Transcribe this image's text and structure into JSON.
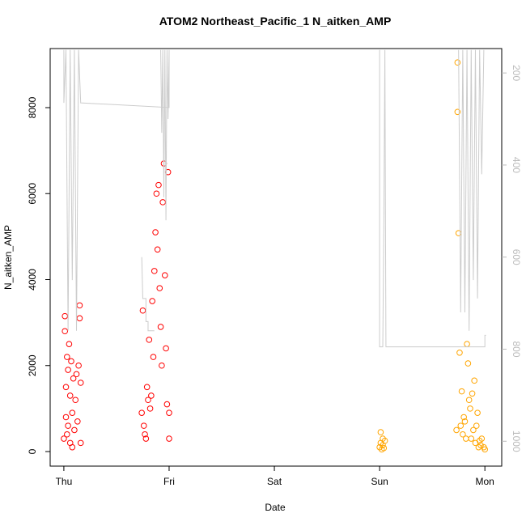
{
  "chart_data": {
    "type": "scatter",
    "title": "ATOM2 Northeast_Pacific_1 N_aitken_AMP",
    "x_label": "Date",
    "y_label": "N_aitken_AMP",
    "xlim": [
      -0.13,
      4.16
    ],
    "ylim": [
      -339,
      9374
    ],
    "y2lim": [
      1054,
      147
    ],
    "xticks": [
      {
        "value": 0,
        "label": "Thu"
      },
      {
        "value": 1,
        "label": "Fri"
      },
      {
        "value": 2,
        "label": "Sat"
      },
      {
        "value": 3,
        "label": "Sun"
      },
      {
        "value": 4,
        "label": "Mon"
      }
    ],
    "yticks": [
      0,
      2000,
      4000,
      6000,
      8000
    ],
    "y2ticks": [
      200,
      400,
      600,
      800,
      1000
    ],
    "series": [
      {
        "color": "#ff0000",
        "kind": "points",
        "x": [
          0.0,
          0.01,
          0.01,
          0.02,
          0.02,
          0.03,
          0.03,
          0.04,
          0.04,
          0.05,
          0.06,
          0.06,
          0.07,
          0.08,
          0.08,
          0.09,
          0.1,
          0.11,
          0.12,
          0.13,
          0.14,
          0.15,
          0.15,
          0.16,
          0.16,
          0.74,
          0.75,
          0.76,
          0.77,
          0.78,
          0.79,
          0.8,
          0.81,
          0.82,
          0.83,
          0.84,
          0.85,
          0.86,
          0.87,
          0.88,
          0.89,
          0.9,
          0.91,
          0.92,
          0.93,
          0.94,
          0.95,
          0.96,
          0.97,
          0.98,
          0.99,
          1.0,
          1.0
        ],
        "values": [
          300,
          2800,
          3150,
          1500,
          800,
          2200,
          400,
          1900,
          600,
          2500,
          1300,
          200,
          2100,
          900,
          100,
          1700,
          500,
          1200,
          1800,
          700,
          2000,
          3400,
          3100,
          1600,
          200,
          900,
          3280,
          600,
          400,
          300,
          1500,
          1200,
          2600,
          1000,
          1300,
          3500,
          2200,
          4200,
          5100,
          6000,
          4700,
          6200,
          3800,
          2900,
          2000,
          5800,
          6700,
          4100,
          2400,
          1100,
          6500,
          900,
          300
        ]
      },
      {
        "color": "#ffa500",
        "kind": "points",
        "x": [
          3.0,
          3.01,
          3.01,
          3.02,
          3.03,
          3.03,
          3.04,
          3.05,
          3.73,
          3.74,
          3.74,
          3.75,
          3.76,
          3.77,
          3.78,
          3.79,
          3.8,
          3.81,
          3.82,
          3.83,
          3.84,
          3.85,
          3.86,
          3.87,
          3.88,
          3.89,
          3.9,
          3.91,
          3.92,
          3.93,
          3.94,
          3.95,
          3.96,
          3.97,
          3.99,
          4.0
        ],
        "values": [
          100,
          450,
          200,
          50,
          300,
          150,
          80,
          250,
          500,
          9050,
          7900,
          5080,
          2300,
          600,
          1400,
          400,
          800,
          700,
          300,
          2500,
          2050,
          1200,
          1000,
          300,
          1350,
          500,
          1650,
          200,
          600,
          900,
          100,
          250,
          150,
          300,
          100,
          50
        ]
      },
      {
        "color": "#cccccc",
        "kind": "line",
        "axis": "y2",
        "x": [
          0.0,
          0.0,
          0.02,
          0.04,
          0.06,
          0.08,
          0.1,
          0.12,
          0.14,
          0.16,
          1.0,
          1.0,
          null,
          0.74,
          0.75,
          0.78,
          0.78,
          0.8,
          0.8,
          0.82,
          0.86,
          null,
          0.92,
          0.93,
          0.94,
          0.95,
          0.96,
          0.97,
          0.98,
          0.99,
          1.0,
          null,
          3.0,
          3.0,
          3.03,
          3.04,
          3.05,
          3.06,
          4.0,
          4.0,
          4.01,
          null,
          3.75,
          3.77,
          3.79,
          3.81,
          3.83,
          3.85,
          3.87,
          3.89,
          3.91,
          3.93,
          3.95,
          3.97,
          3.99
        ],
        "values": [
          150,
          265,
          150,
          760,
          150,
          650,
          150,
          760,
          150,
          265,
          275,
          150,
          null,
          600,
          690,
          690,
          740,
          740,
          760,
          760,
          760,
          null,
          150,
          330,
          150,
          470,
          150,
          520,
          150,
          300,
          150,
          null,
          150,
          795,
          795,
          530,
          150,
          795,
          795,
          770,
          770,
          null,
          150,
          720,
          150,
          720,
          150,
          760,
          150,
          650,
          150,
          690,
          150,
          420,
          150
        ]
      }
    ]
  }
}
